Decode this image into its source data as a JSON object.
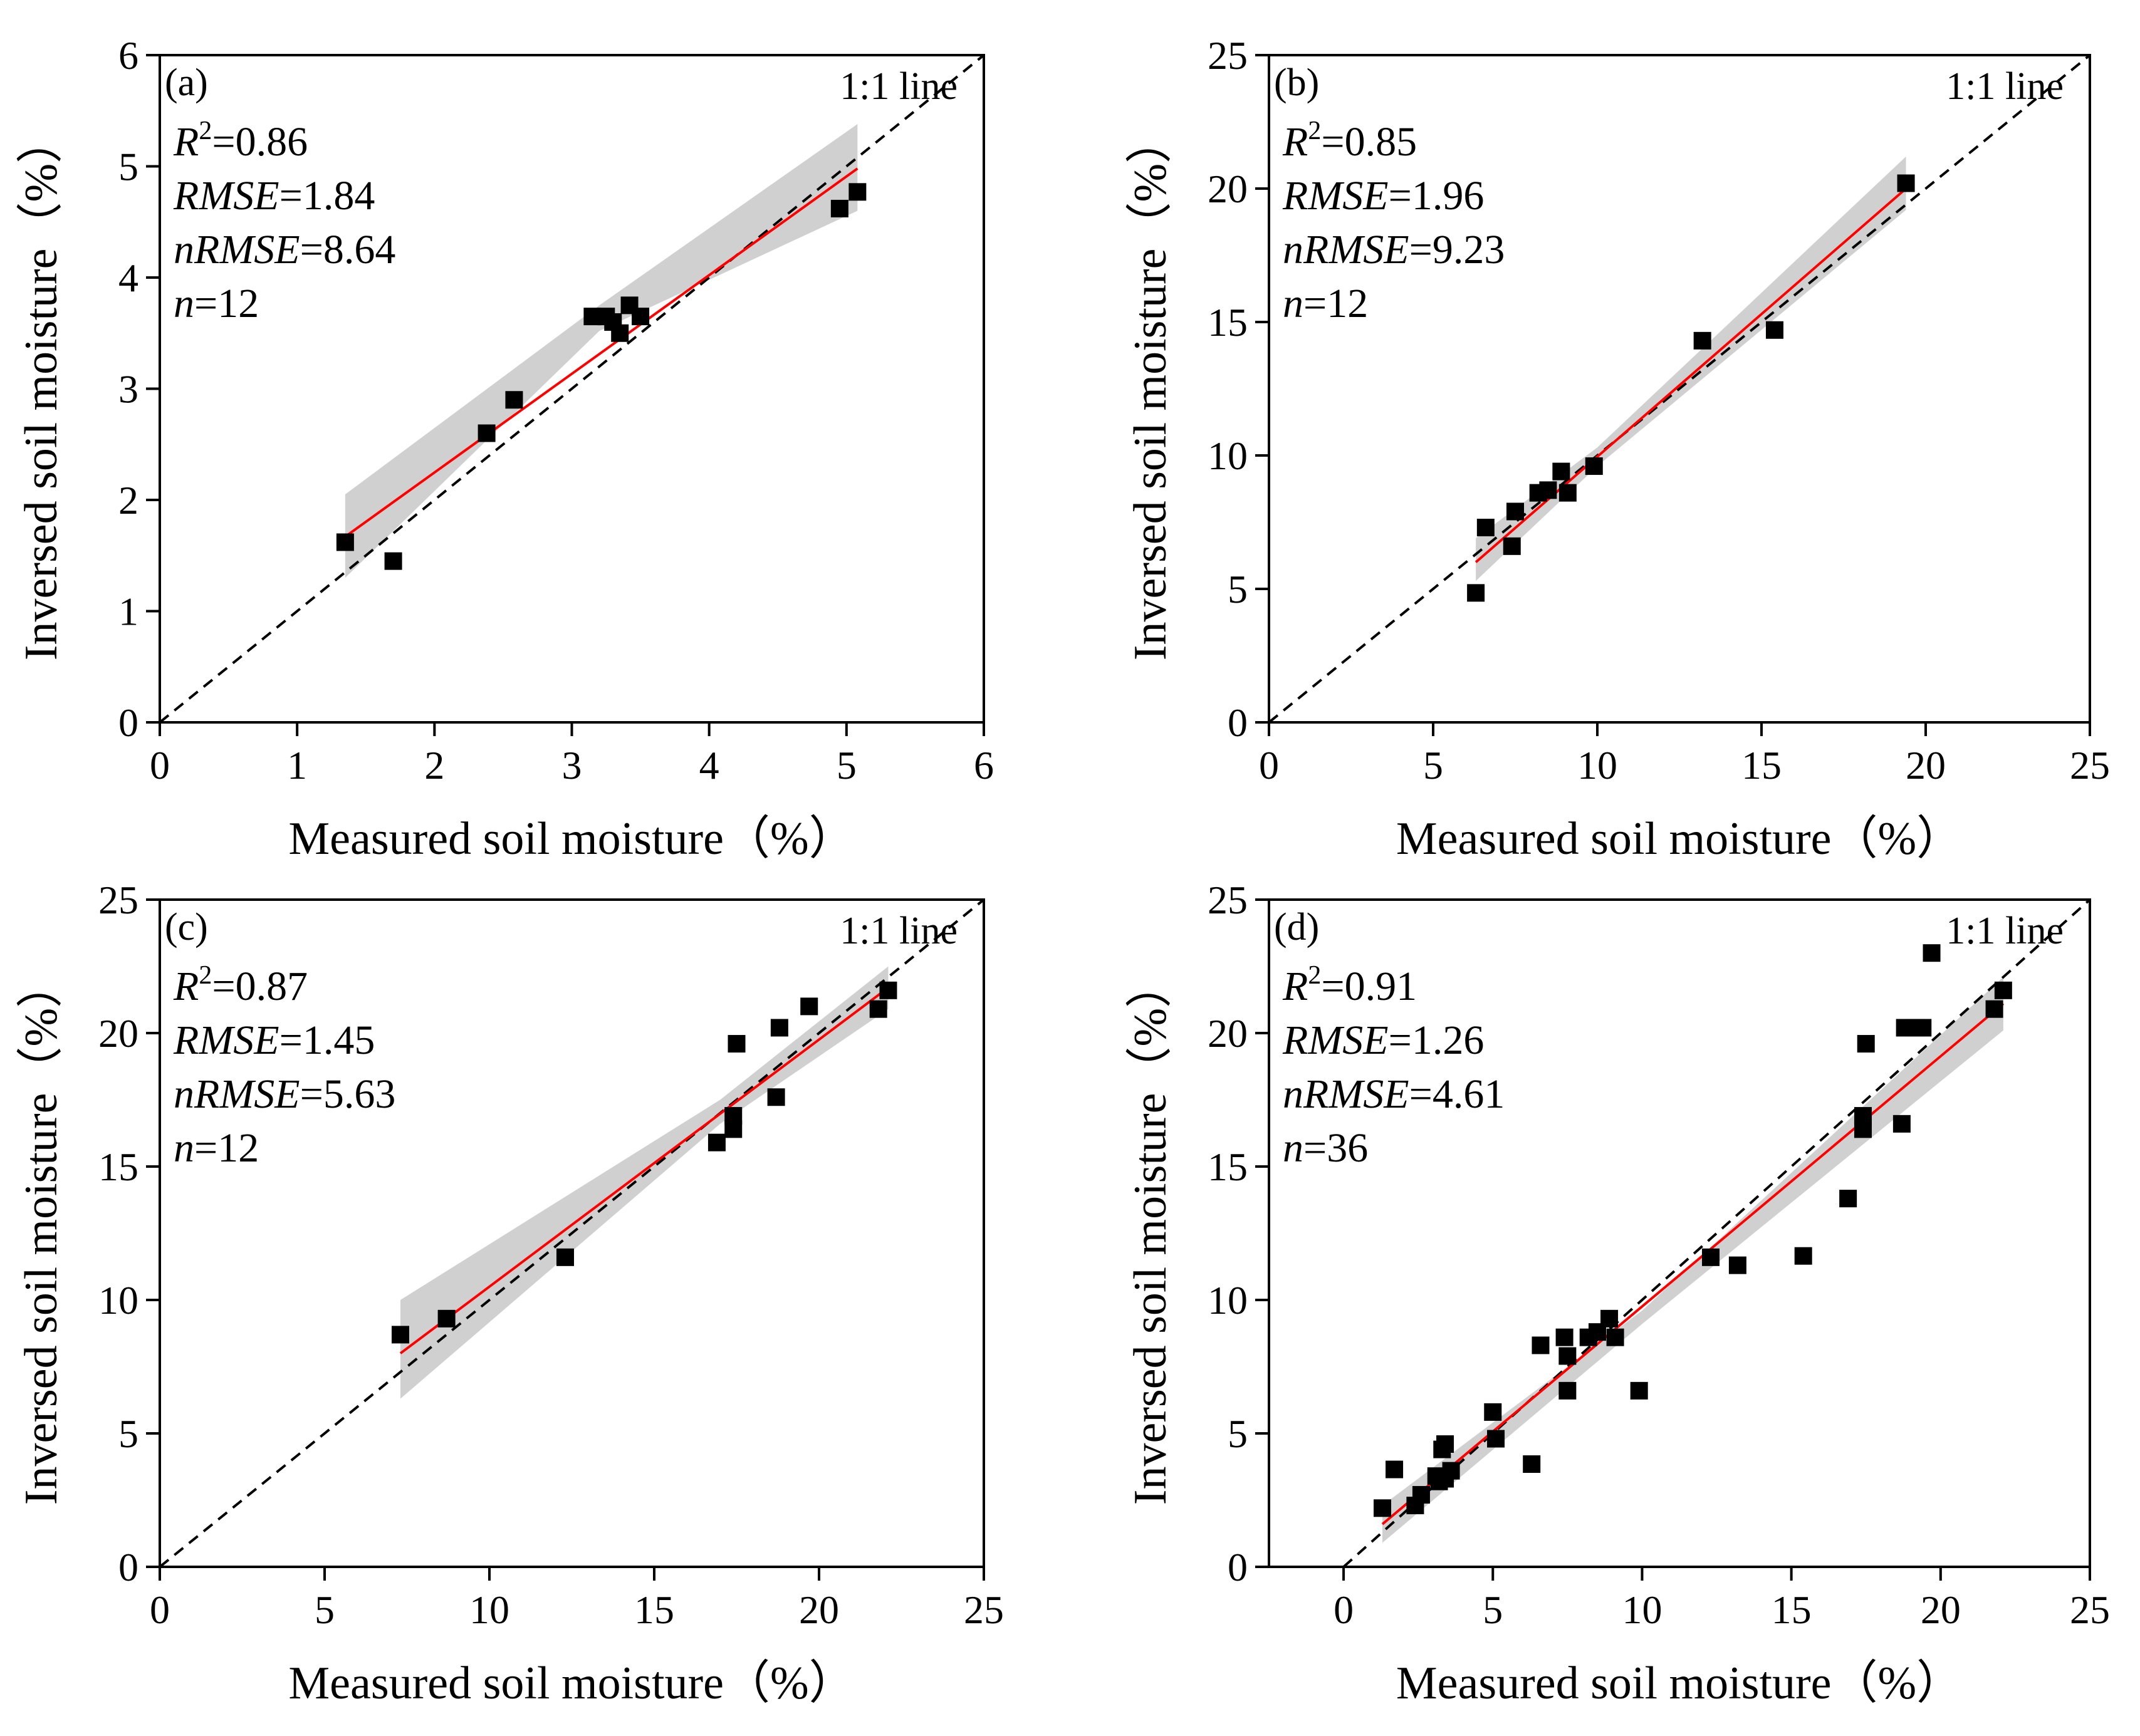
{
  "figure": {
    "xlabel": "Measured soil moisture（%）",
    "ylabel": "Inversed soil moisture（%）",
    "ref_line_label": "1:1 line"
  },
  "colors": {
    "points": "#000000",
    "fit_line": "#ff0000",
    "band": "#c8c8c8",
    "ref_line": "#000000"
  },
  "chart_data": [
    {
      "type": "scatter",
      "panel": "(a)",
      "xlim": [
        0,
        6
      ],
      "ylim": [
        0,
        6
      ],
      "xticks": [
        0,
        1,
        2,
        3,
        4,
        5,
        6
      ],
      "yticks": [
        0,
        1,
        2,
        3,
        4,
        5,
        6
      ],
      "stats": {
        "r2": "0.86",
        "rmse": "1.84",
        "nrmse": "8.64",
        "n": "12"
      },
      "points": [
        [
          1.35,
          1.62
        ],
        [
          1.7,
          1.45
        ],
        [
          2.38,
          2.6
        ],
        [
          2.58,
          2.9
        ],
        [
          3.15,
          3.65
        ],
        [
          3.25,
          3.65
        ],
        [
          3.35,
          3.5
        ],
        [
          3.42,
          3.75
        ],
        [
          3.5,
          3.65
        ],
        [
          4.95,
          4.62
        ],
        [
          5.08,
          4.77
        ],
        [
          3.3,
          3.6
        ]
      ],
      "fit": {
        "x": [
          1.35,
          5.08
        ],
        "y": [
          1.67,
          4.98
        ]
      },
      "band": {
        "x": [
          1.35,
          3.2,
          5.08
        ],
        "upper": [
          2.05,
          3.75,
          5.38
        ],
        "lower": [
          1.3,
          3.52,
          4.6
        ]
      }
    },
    {
      "type": "scatter",
      "panel": "(b)",
      "xlim": [
        0,
        25
      ],
      "ylim": [
        0,
        25
      ],
      "xticks": [
        0,
        5,
        10,
        15,
        20,
        25
      ],
      "yticks": [
        0,
        5,
        10,
        15,
        20,
        25
      ],
      "stats": {
        "r2": "0.85",
        "rmse": "1.96",
        "nrmse": "9.23",
        "n": "12"
      },
      "points": [
        [
          6.3,
          4.85
        ],
        [
          6.6,
          7.3
        ],
        [
          7.4,
          6.6
        ],
        [
          7.5,
          7.9
        ],
        [
          8.2,
          8.6
        ],
        [
          8.5,
          8.7
        ],
        [
          8.9,
          9.4
        ],
        [
          9.1,
          8.6
        ],
        [
          9.9,
          9.6
        ],
        [
          13.2,
          14.3
        ],
        [
          15.4,
          14.7
        ],
        [
          19.4,
          20.2
        ]
      ],
      "fit": {
        "x": [
          6.3,
          19.4
        ],
        "y": [
          6.0,
          20.0
        ]
      },
      "band": {
        "x": [
          6.3,
          10.0,
          19.4
        ],
        "upper": [
          6.9,
          10.3,
          21.2
        ],
        "lower": [
          5.3,
          9.6,
          19.2
        ]
      }
    },
    {
      "type": "scatter",
      "panel": "(c)",
      "xlim": [
        0,
        25
      ],
      "ylim": [
        0,
        25
      ],
      "xticks": [
        0,
        5,
        10,
        15,
        20,
        25
      ],
      "yticks": [
        0,
        5,
        10,
        15,
        20,
        25
      ],
      "stats": {
        "r2": "0.87",
        "rmse": "1.45",
        "nrmse": "5.63",
        "n": "12"
      },
      "points": [
        [
          7.3,
          8.7
        ],
        [
          8.7,
          9.3
        ],
        [
          12.3,
          11.6
        ],
        [
          16.9,
          15.9
        ],
        [
          17.4,
          16.4
        ],
        [
          17.4,
          16.9
        ],
        [
          17.5,
          19.6
        ],
        [
          18.7,
          17.6
        ],
        [
          18.8,
          20.2
        ],
        [
          19.7,
          21.0
        ],
        [
          21.8,
          20.9
        ],
        [
          22.1,
          21.6
        ]
      ],
      "fit": {
        "x": [
          7.3,
          22.1
        ],
        "y": [
          8.0,
          21.7
        ]
      },
      "band": {
        "x": [
          7.3,
          17.0,
          22.1
        ],
        "upper": [
          10.0,
          17.5,
          22.5
        ],
        "lower": [
          6.3,
          16.6,
          20.9
        ]
      }
    },
    {
      "type": "scatter",
      "panel": "(d)",
      "xlim": [
        -2.5,
        25
      ],
      "ylim": [
        0,
        25
      ],
      "xticks": [
        0,
        5,
        10,
        15,
        20,
        25
      ],
      "yticks": [
        0,
        5,
        10,
        15,
        20,
        25
      ],
      "stats": {
        "r2": "0.91",
        "rmse": "1.26",
        "nrmse": "4.61",
        "n": "36"
      },
      "points": [
        [
          1.3,
          2.2
        ],
        [
          1.7,
          3.65
        ],
        [
          2.4,
          2.3
        ],
        [
          2.6,
          2.7
        ],
        [
          3.2,
          3.2
        ],
        [
          3.3,
          4.4
        ],
        [
          3.4,
          3.3
        ],
        [
          3.4,
          4.6
        ],
        [
          3.6,
          3.6
        ],
        [
          5.0,
          5.8
        ],
        [
          5.1,
          4.8
        ],
        [
          6.3,
          3.85
        ],
        [
          6.6,
          8.3
        ],
        [
          7.4,
          8.6
        ],
        [
          7.5,
          6.6
        ],
        [
          7.5,
          7.9
        ],
        [
          8.2,
          8.6
        ],
        [
          8.5,
          8.8
        ],
        [
          8.9,
          9.3
        ],
        [
          9.1,
          8.6
        ],
        [
          9.9,
          6.6
        ],
        [
          12.3,
          11.6
        ],
        [
          13.2,
          11.3
        ],
        [
          15.4,
          11.65
        ],
        [
          16.9,
          13.8
        ],
        [
          17.4,
          16.4
        ],
        [
          17.4,
          16.9
        ],
        [
          17.5,
          19.6
        ],
        [
          18.7,
          16.6
        ],
        [
          18.8,
          20.2
        ],
        [
          19.2,
          20.2
        ],
        [
          19.4,
          20.2
        ],
        [
          19.7,
          23.0
        ],
        [
          21.8,
          20.9
        ],
        [
          22.1,
          21.6
        ],
        [
          3.1,
          3.4
        ]
      ],
      "fit": {
        "x": [
          1.3,
          22.1
        ],
        "y": [
          1.6,
          21.1
        ]
      },
      "band": {
        "x": [
          1.3,
          10.0,
          22.1
        ],
        "upper": [
          2.3,
          9.6,
          22.1
        ],
        "lower": [
          0.9,
          9.1,
          20.1
        ]
      }
    }
  ]
}
